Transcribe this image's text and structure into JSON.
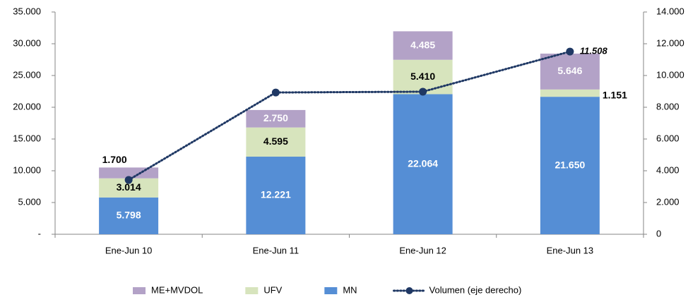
{
  "chart_data": {
    "type": "bar",
    "categories": [
      "Ene-Jun 10",
      "Ene-Jun 11",
      "Ene-Jun 12",
      "Ene-Jun 13"
    ],
    "series": [
      {
        "name": "MN",
        "color": "#558ed5",
        "values": [
          5798,
          12221,
          22064,
          21650
        ],
        "value_labels": [
          "5.798",
          "12.221",
          "22.064",
          "21.650"
        ]
      },
      {
        "name": "UFV",
        "color": "#d7e4bd",
        "values": [
          3014,
          4595,
          5410,
          1151
        ],
        "value_labels": [
          "3.014",
          "4.595",
          "5.410",
          "1.151"
        ]
      },
      {
        "name": "ME+MVDOL",
        "color": "#b3a2c7",
        "values": [
          1700,
          2750,
          4485,
          5646
        ],
        "value_labels": [
          "1.700",
          "2.750",
          "4.485",
          "5.646"
        ]
      },
      {
        "name": "Volumen (eje derecho)",
        "color": "#1f3864",
        "type": "line",
        "axis": "y2",
        "values": [
          3420,
          8930,
          8980,
          11508
        ],
        "value_labels": [
          null,
          null,
          null,
          "11.508"
        ]
      }
    ],
    "legend_order": [
      "ME+MVDOL",
      "UFV",
      "MN",
      "Volumen (eje derecho)"
    ],
    "ylim": [
      0,
      35000
    ],
    "yticks": [
      {
        "value": 0,
        "label": "-"
      },
      {
        "value": 5000,
        "label": "5.000"
      },
      {
        "value": 10000,
        "label": "10.000"
      },
      {
        "value": 15000,
        "label": "15.000"
      },
      {
        "value": 20000,
        "label": "20.000"
      },
      {
        "value": 25000,
        "label": "25.000"
      },
      {
        "value": 30000,
        "label": "30.000"
      },
      {
        "value": 35000,
        "label": "35.000"
      }
    ],
    "y2lim": [
      0,
      14000
    ],
    "y2ticks": [
      0,
      {
        "value": 2000,
        "label": "2.000"
      },
      {
        "value": 4000,
        "label": "4.000"
      },
      {
        "value": 6000,
        "label": "6.000"
      },
      {
        "value": 8000,
        "label": "8.000"
      },
      {
        "value": 10000,
        "label": "10.000"
      },
      {
        "value": 12000,
        "label": "12.000"
      },
      {
        "value": 14000,
        "label": "14.000"
      }
    ]
  }
}
